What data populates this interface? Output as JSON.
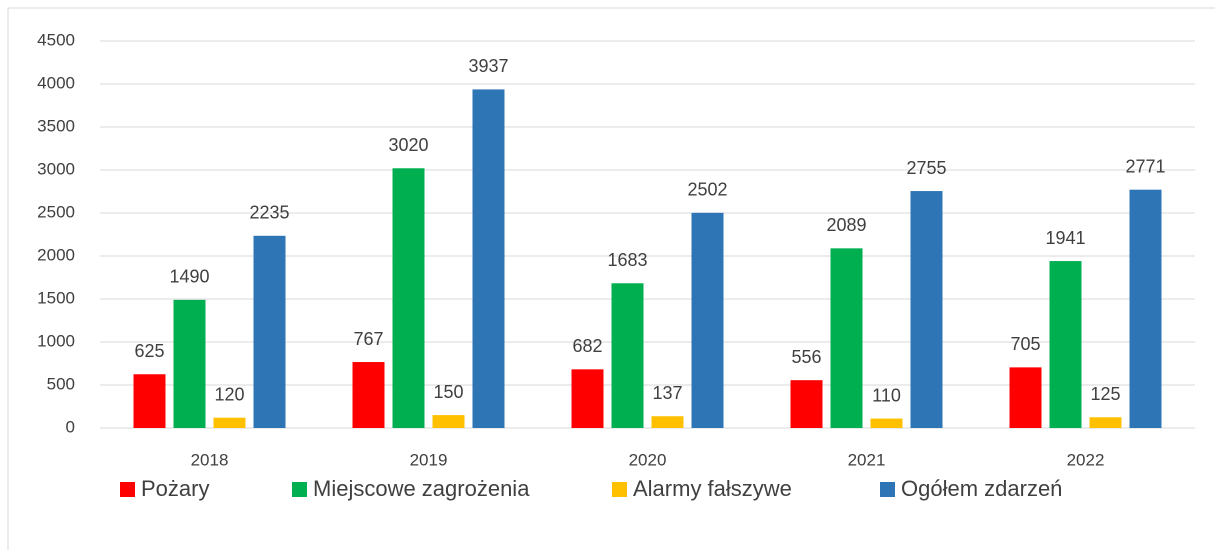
{
  "chart_data": {
    "type": "bar",
    "categories": [
      "2018",
      "2019",
      "2020",
      "2021",
      "2022"
    ],
    "series": [
      {
        "name": "Pożary",
        "color": "#ff0000",
        "values": [
          625,
          767,
          682,
          556,
          705
        ]
      },
      {
        "name": "Miejscowe zagrożenia",
        "color": "#00b050",
        "values": [
          1490,
          3020,
          1683,
          2089,
          1941
        ]
      },
      {
        "name": "Alarmy fałszywe",
        "color": "#ffc000",
        "values": [
          120,
          150,
          137,
          110,
          125
        ]
      },
      {
        "name": "Ogółem zdarzeń",
        "color": "#2e75b6",
        "values": [
          2235,
          3937,
          2502,
          2755,
          2771
        ]
      }
    ],
    "ylim": [
      0,
      4500
    ],
    "yticks": [
      0,
      500,
      1000,
      1500,
      2000,
      2500,
      3000,
      3500,
      4000,
      4500
    ],
    "grid": true,
    "legend": "bottom"
  }
}
